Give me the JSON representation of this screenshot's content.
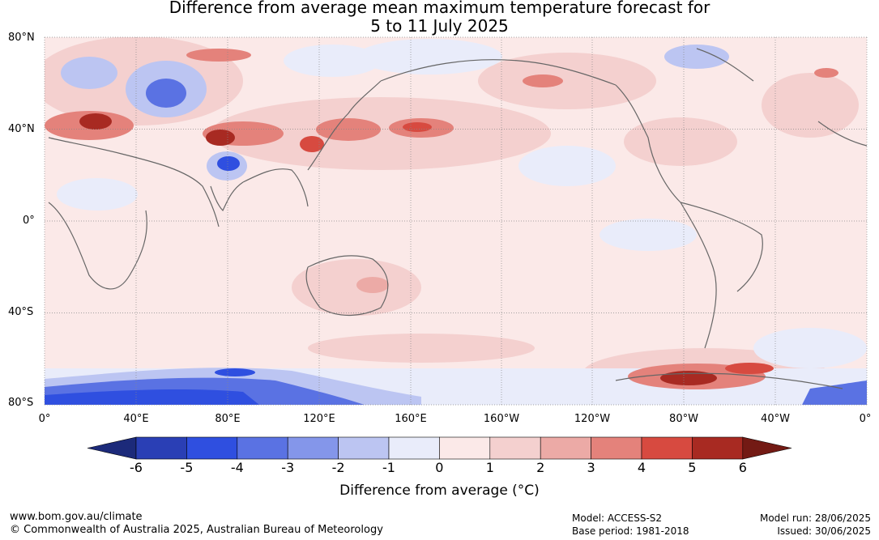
{
  "title_line1": "Difference from average mean maximum temperature forecast for",
  "title_line2": "5 to 11 July 2025",
  "lat_labels": [
    "80°N",
    "40°N",
    "0°",
    "40°S",
    "80°S"
  ],
  "lon_labels": [
    "0°",
    "40°E",
    "80°E",
    "120°E",
    "160°E",
    "160°W",
    "120°W",
    "80°W",
    "40°W",
    "0°"
  ],
  "colorbar": {
    "label": "Difference from average (°C)",
    "ticks": [
      "-6",
      "-5",
      "-4",
      "-3",
      "-2",
      "-1",
      "0",
      "1",
      "2",
      "3",
      "4",
      "5",
      "6"
    ],
    "colors": [
      "#1c2a7a",
      "#2a3fb5",
      "#2f4fe0",
      "#5a72e3",
      "#8496ea",
      "#bcc5f2",
      "#e9ecfa",
      "#fbe9e8",
      "#f4d0cf",
      "#ecaaa6",
      "#e4827b",
      "#d74a40",
      "#a82a22",
      "#731a14"
    ]
  },
  "footer": {
    "website": "www.bom.gov.au/climate",
    "copyright": "© Commonwealth of Australia 2025, Australian Bureau of Meteorology",
    "model": "Model: ACCESS-S2",
    "base_period": "Base period: 1981-2018",
    "model_run": "Model run: 28/06/2025",
    "issued": "Issued: 30/06/2025"
  }
}
